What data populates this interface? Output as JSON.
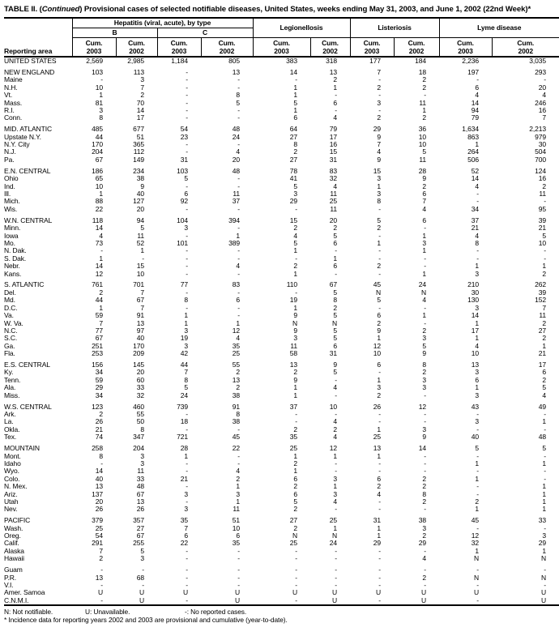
{
  "title": {
    "prefix": "TABLE II. (",
    "continued": "Continued",
    "suffix": ") Provisional cases of selected notifiable diseases, United States, weeks ending May 31, 2003, and June 1, 2002 (22nd Week)*"
  },
  "columns": {
    "reporting_area": "Reporting area",
    "hepatitis_group": "Hepatitis (viral, acute), by type",
    "hep_b": "B",
    "hep_c": "C",
    "legionellosis": "Legionellosis",
    "listeriosis": "Listeriosis",
    "lyme_disease": "Lyme disease",
    "cum": "Cum.",
    "year_2003": "2003",
    "year_2002": "2002"
  },
  "footnotes": {
    "n": "N: Not notifiable.",
    "u": "U: Unavailable.",
    "dash": "-: No reported cases.",
    "asterisk": "* Incidence data for reporting years 2002 and 2003 are provisional and cumulative (year-to-date)."
  },
  "table": {
    "rows": [
      {
        "label": "UNITED STATES",
        "values": [
          "2,569",
          "2,985",
          "1,184",
          "805",
          "383",
          "318",
          "177",
          "184",
          "2,236",
          "3,035"
        ]
      },
      {
        "spacer": true
      },
      {
        "label": "NEW ENGLAND",
        "values": [
          "103",
          "113",
          "-",
          "13",
          "14",
          "13",
          "7",
          "18",
          "197",
          "293"
        ]
      },
      {
        "label": "Maine",
        "values": [
          "-",
          "3",
          "-",
          "-",
          "-",
          "2",
          "-",
          "2",
          "-",
          "-"
        ]
      },
      {
        "label": "N.H.",
        "values": [
          "10",
          "7",
          "-",
          "-",
          "1",
          "1",
          "2",
          "2",
          "6",
          "20"
        ]
      },
      {
        "label": "Vt.",
        "values": [
          "1",
          "2",
          "-",
          "8",
          "1",
          "-",
          "-",
          "-",
          "4",
          "4"
        ]
      },
      {
        "label": "Mass.",
        "values": [
          "81",
          "70",
          "-",
          "5",
          "5",
          "6",
          "3",
          "11",
          "14",
          "246"
        ]
      },
      {
        "label": "R.I.",
        "values": [
          "3",
          "14",
          "-",
          "-",
          "1",
          "-",
          "-",
          "1",
          "94",
          "16"
        ]
      },
      {
        "label": "Conn.",
        "values": [
          "8",
          "17",
          "-",
          "-",
          "6",
          "4",
          "2",
          "2",
          "79",
          "7"
        ]
      },
      {
        "spacer": true
      },
      {
        "label": "MID. ATLANTIC",
        "values": [
          "485",
          "677",
          "54",
          "48",
          "64",
          "79",
          "29",
          "36",
          "1,634",
          "2,213"
        ]
      },
      {
        "label": "Upstate N.Y.",
        "values": [
          "44",
          "51",
          "23",
          "24",
          "27",
          "17",
          "9",
          "10",
          "863",
          "979"
        ]
      },
      {
        "label": "N.Y. City",
        "values": [
          "170",
          "365",
          "-",
          "-",
          "8",
          "16",
          "7",
          "10",
          "1",
          "30"
        ]
      },
      {
        "label": "N.J.",
        "values": [
          "204",
          "112",
          "-",
          "4",
          "2",
          "15",
          "4",
          "5",
          "264",
          "504"
        ]
      },
      {
        "label": "Pa.",
        "values": [
          "67",
          "149",
          "31",
          "20",
          "27",
          "31",
          "9",
          "11",
          "506",
          "700"
        ]
      },
      {
        "spacer": true
      },
      {
        "label": "E.N. CENTRAL",
        "values": [
          "186",
          "234",
          "103",
          "48",
          "78",
          "83",
          "15",
          "28",
          "52",
          "124"
        ]
      },
      {
        "label": "Ohio",
        "values": [
          "65",
          "38",
          "5",
          "-",
          "41",
          "32",
          "3",
          "9",
          "14",
          "16"
        ]
      },
      {
        "label": "Ind.",
        "values": [
          "10",
          "9",
          "-",
          "-",
          "5",
          "4",
          "1",
          "2",
          "4",
          "2"
        ]
      },
      {
        "label": "Ill.",
        "values": [
          "1",
          "40",
          "6",
          "11",
          "3",
          "11",
          "3",
          "6",
          "-",
          "11"
        ]
      },
      {
        "label": "Mich.",
        "values": [
          "88",
          "127",
          "92",
          "37",
          "29",
          "25",
          "8",
          "7",
          "-",
          "-"
        ]
      },
      {
        "label": "Wis.",
        "values": [
          "22",
          "20",
          "-",
          "-",
          "-",
          "11",
          "-",
          "4",
          "34",
          "95"
        ]
      },
      {
        "spacer": true
      },
      {
        "label": "W.N. CENTRAL",
        "values": [
          "118",
          "94",
          "104",
          "394",
          "15",
          "20",
          "5",
          "6",
          "37",
          "39"
        ]
      },
      {
        "label": "Minn.",
        "values": [
          "14",
          "5",
          "3",
          "-",
          "2",
          "2",
          "2",
          "-",
          "21",
          "21"
        ]
      },
      {
        "label": "Iowa",
        "values": [
          "4",
          "11",
          "-",
          "1",
          "4",
          "5",
          "-",
          "1",
          "4",
          "5"
        ]
      },
      {
        "label": "Mo.",
        "values": [
          "73",
          "52",
          "101",
          "389",
          "5",
          "6",
          "1",
          "3",
          "8",
          "10"
        ]
      },
      {
        "label": "N. Dak.",
        "values": [
          "-",
          "1",
          "-",
          "-",
          "1",
          "-",
          "-",
          "1",
          "-",
          "-"
        ]
      },
      {
        "label": "S. Dak.",
        "values": [
          "1",
          "-",
          "-",
          "-",
          "-",
          "1",
          "-",
          "-",
          "-",
          "-"
        ]
      },
      {
        "label": "Nebr.",
        "values": [
          "14",
          "15",
          "-",
          "4",
          "2",
          "6",
          "2",
          "-",
          "1",
          "1"
        ]
      },
      {
        "label": "Kans.",
        "values": [
          "12",
          "10",
          "-",
          "-",
          "1",
          "-",
          "-",
          "1",
          "3",
          "2"
        ]
      },
      {
        "spacer": true
      },
      {
        "label": "S. ATLANTIC",
        "values": [
          "761",
          "701",
          "77",
          "83",
          "110",
          "67",
          "45",
          "24",
          "210",
          "262"
        ]
      },
      {
        "label": "Del.",
        "values": [
          "2",
          "7",
          "-",
          "-",
          "-",
          "5",
          "N",
          "N",
          "30",
          "39"
        ]
      },
      {
        "label": "Md.",
        "values": [
          "44",
          "67",
          "8",
          "6",
          "19",
          "8",
          "5",
          "4",
          "130",
          "152"
        ]
      },
      {
        "label": "D.C.",
        "values": [
          "1",
          "7",
          "-",
          "-",
          "1",
          "2",
          "-",
          "-",
          "3",
          "7"
        ]
      },
      {
        "label": "Va.",
        "values": [
          "59",
          "91",
          "1",
          "-",
          "9",
          "5",
          "6",
          "1",
          "14",
          "11"
        ]
      },
      {
        "label": "W. Va.",
        "values": [
          "7",
          "13",
          "1",
          "1",
          "N",
          "N",
          "2",
          "-",
          "1",
          "2"
        ]
      },
      {
        "label": "N.C.",
        "values": [
          "77",
          "97",
          "3",
          "12",
          "9",
          "5",
          "9",
          "2",
          "17",
          "27"
        ]
      },
      {
        "label": "S.C.",
        "values": [
          "67",
          "40",
          "19",
          "4",
          "3",
          "5",
          "1",
          "3",
          "1",
          "2"
        ]
      },
      {
        "label": "Ga.",
        "values": [
          "251",
          "170",
          "3",
          "35",
          "11",
          "6",
          "12",
          "5",
          "4",
          "1"
        ]
      },
      {
        "label": "Fla.",
        "values": [
          "253",
          "209",
          "42",
          "25",
          "58",
          "31",
          "10",
          "9",
          "10",
          "21"
        ]
      },
      {
        "spacer": true
      },
      {
        "label": "E.S. CENTRAL",
        "values": [
          "156",
          "145",
          "44",
          "55",
          "13",
          "9",
          "6",
          "8",
          "13",
          "17"
        ]
      },
      {
        "label": "Ky.",
        "values": [
          "34",
          "20",
          "7",
          "2",
          "2",
          "5",
          "-",
          "2",
          "3",
          "6"
        ]
      },
      {
        "label": "Tenn.",
        "values": [
          "59",
          "60",
          "8",
          "13",
          "9",
          "-",
          "1",
          "3",
          "6",
          "2"
        ]
      },
      {
        "label": "Ala.",
        "values": [
          "29",
          "33",
          "5",
          "2",
          "1",
          "4",
          "3",
          "3",
          "1",
          "5"
        ]
      },
      {
        "label": "Miss.",
        "values": [
          "34",
          "32",
          "24",
          "38",
          "1",
          "-",
          "2",
          "-",
          "3",
          "4"
        ]
      },
      {
        "spacer": true
      },
      {
        "label": "W.S. CENTRAL",
        "values": [
          "123",
          "460",
          "739",
          "91",
          "37",
          "10",
          "26",
          "12",
          "43",
          "49"
        ]
      },
      {
        "label": "Ark.",
        "values": [
          "2",
          "55",
          "-",
          "8",
          "-",
          "-",
          "-",
          "-",
          "-",
          "-"
        ]
      },
      {
        "label": "La.",
        "values": [
          "26",
          "50",
          "18",
          "38",
          "-",
          "4",
          "-",
          "-",
          "3",
          "1"
        ]
      },
      {
        "label": "Okla.",
        "values": [
          "21",
          "8",
          "-",
          "-",
          "2",
          "2",
          "1",
          "3",
          "-",
          "-"
        ]
      },
      {
        "label": "Tex.",
        "values": [
          "74",
          "347",
          "721",
          "45",
          "35",
          "4",
          "25",
          "9",
          "40",
          "48"
        ]
      },
      {
        "spacer": true
      },
      {
        "label": "MOUNTAIN",
        "values": [
          "258",
          "204",
          "28",
          "22",
          "25",
          "12",
          "13",
          "14",
          "5",
          "5"
        ]
      },
      {
        "label": "Mont.",
        "values": [
          "8",
          "3",
          "1",
          "-",
          "1",
          "1",
          "1",
          "-",
          "-",
          "-"
        ]
      },
      {
        "label": "Idaho",
        "values": [
          "-",
          "3",
          "-",
          "-",
          "2",
          "-",
          "-",
          "-",
          "1",
          "1"
        ]
      },
      {
        "label": "Wyo.",
        "values": [
          "14",
          "11",
          "-",
          "4",
          "1",
          "-",
          "-",
          "-",
          "-",
          "-"
        ]
      },
      {
        "label": "Colo.",
        "values": [
          "40",
          "33",
          "21",
          "2",
          "6",
          "3",
          "6",
          "2",
          "1",
          "-"
        ]
      },
      {
        "label": "N. Mex.",
        "values": [
          "13",
          "48",
          "-",
          "1",
          "2",
          "1",
          "2",
          "2",
          "-",
          "1"
        ]
      },
      {
        "label": "Ariz.",
        "values": [
          "137",
          "67",
          "3",
          "3",
          "6",
          "3",
          "4",
          "8",
          "-",
          "1"
        ]
      },
      {
        "label": "Utah",
        "values": [
          "20",
          "13",
          "-",
          "1",
          "5",
          "4",
          "-",
          "2",
          "2",
          "1"
        ]
      },
      {
        "label": "Nev.",
        "values": [
          "26",
          "26",
          "3",
          "11",
          "2",
          "-",
          "-",
          "-",
          "1",
          "1"
        ]
      },
      {
        "spacer": true
      },
      {
        "label": "PACIFIC",
        "values": [
          "379",
          "357",
          "35",
          "51",
          "27",
          "25",
          "31",
          "38",
          "45",
          "33"
        ]
      },
      {
        "label": "Wash.",
        "values": [
          "25",
          "27",
          "7",
          "10",
          "2",
          "1",
          "1",
          "3",
          "-",
          "-"
        ]
      },
      {
        "label": "Oreg.",
        "values": [
          "54",
          "67",
          "6",
          "6",
          "N",
          "N",
          "1",
          "2",
          "12",
          "3"
        ]
      },
      {
        "label": "Calif.",
        "values": [
          "291",
          "255",
          "22",
          "35",
          "25",
          "24",
          "29",
          "29",
          "32",
          "29"
        ]
      },
      {
        "label": "Alaska",
        "values": [
          "7",
          "5",
          "-",
          "-",
          "-",
          "-",
          "-",
          "-",
          "1",
          "1"
        ]
      },
      {
        "label": "Hawaii",
        "values": [
          "2",
          "3",
          "-",
          "-",
          "-",
          "-",
          "-",
          "4",
          "N",
          "N"
        ]
      },
      {
        "spacer": true
      },
      {
        "label": "Guam",
        "values": [
          "-",
          "-",
          "-",
          "-",
          "-",
          "-",
          "-",
          "-",
          "-",
          "-"
        ]
      },
      {
        "label": "P.R.",
        "values": [
          "13",
          "68",
          "-",
          "-",
          "-",
          "-",
          "-",
          "2",
          "N",
          "N"
        ]
      },
      {
        "label": "V.I.",
        "values": [
          "-",
          "-",
          "-",
          "-",
          "-",
          "-",
          "-",
          "-",
          "-",
          "-"
        ]
      },
      {
        "label": "Amer. Samoa",
        "values": [
          "U",
          "U",
          "U",
          "U",
          "U",
          "U",
          "U",
          "U",
          "U",
          "U"
        ]
      },
      {
        "label": "C.N.M.I.",
        "values": [
          "-",
          "U",
          "-",
          "U",
          "-",
          "U",
          "-",
          "U",
          "-",
          "U"
        ]
      }
    ]
  }
}
